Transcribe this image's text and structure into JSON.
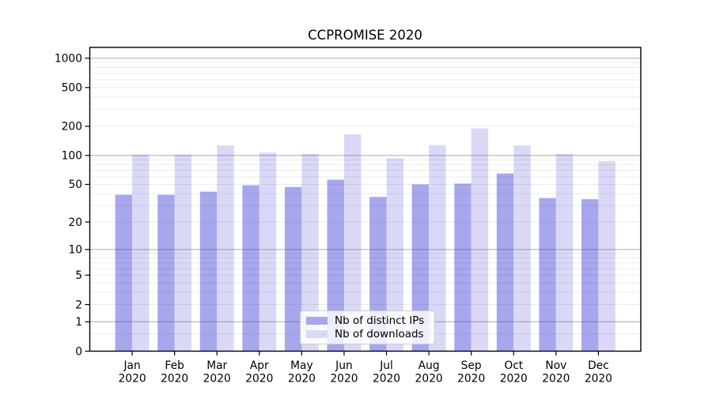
{
  "chart_data": {
    "type": "bar",
    "title": "CCPROMISE 2020",
    "categories": [
      "Jan 2020",
      "Feb 2020",
      "Mar 2020",
      "Apr 2020",
      "May 2020",
      "Jun 2020",
      "Jul 2020",
      "Aug 2020",
      "Sep 2020",
      "Oct 2020",
      "Nov 2020",
      "Dec 2020"
    ],
    "series": [
      {
        "name": "Nb of distinct IPs",
        "color": "#a7a7ee",
        "values": [
          39,
          39,
          42,
          49,
          47,
          56,
          37,
          50,
          51,
          65,
          36,
          35
        ]
      },
      {
        "name": "Nb of downloads",
        "color": "#d9d9f7",
        "values": [
          102,
          102,
          127,
          107,
          104,
          165,
          93,
          128,
          190,
          127,
          104,
          87
        ]
      }
    ],
    "xlabel": "",
    "ylabel": "",
    "y_ticks": [
      0,
      1,
      2,
      5,
      10,
      20,
      50,
      100,
      200,
      500,
      1000
    ],
    "y_scale": "log(1+v)",
    "ylim": [
      0,
      1300
    ],
    "grid": true,
    "legend_position": "lower center",
    "colors": {
      "major_gridline": "#aaaaaa",
      "minor_gridline": "#ebebeb",
      "axis": "#000000",
      "background": "#ffffff"
    }
  }
}
